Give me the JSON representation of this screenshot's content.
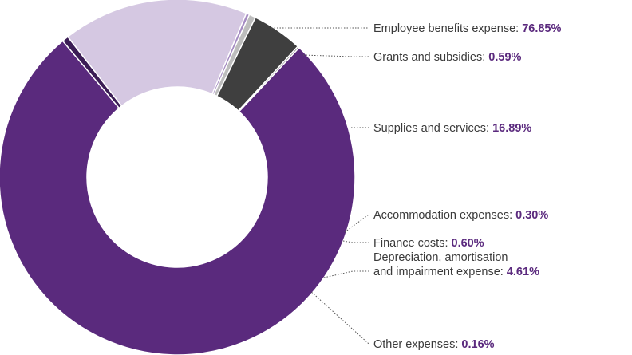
{
  "chart_data": {
    "type": "pie",
    "donut": true,
    "categories": [
      "Employee benefits expense",
      "Grants and subsidies",
      "Supplies and services",
      "Accommodation expenses",
      "Finance costs",
      "Depreciation, amortisation and impairment expense",
      "Other expenses"
    ],
    "values": [
      76.85,
      0.59,
      16.89,
      0.3,
      0.6,
      4.61,
      0.16
    ],
    "value_labels": [
      "76.85%",
      "0.59%",
      "16.89%",
      "0.30%",
      "0.60%",
      "4.61%",
      "0.16%"
    ],
    "label_lines": [
      [
        "Employee benefits expense: "
      ],
      [
        "Grants and subsidies: "
      ],
      [
        "Supplies and services: "
      ],
      [
        "Accommodation expenses: "
      ],
      [
        "Finance costs: "
      ],
      [
        "Depreciation, amortisation",
        "and impairment expense: "
      ],
      [
        "Other expenses: "
      ]
    ],
    "colors": [
      "#5a2a7d",
      "#3b1d55",
      "#d5c8e2",
      "#a58bc2",
      "#bdbdbd",
      "#3f3f3f",
      "#8a8a8a"
    ],
    "accent_color": "#5b2a7e",
    "legend": "right"
  }
}
